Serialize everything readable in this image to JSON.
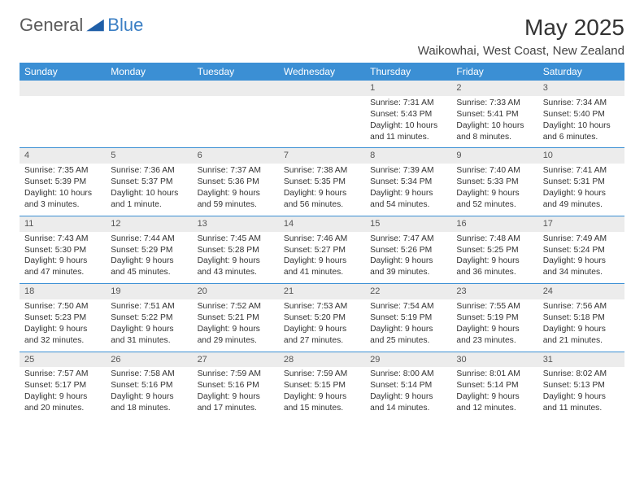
{
  "brand": {
    "text1": "General",
    "text2": "Blue",
    "icon_color": "#1f5fa8"
  },
  "title": "May 2025",
  "location": "Waikowhai, West Coast, New Zealand",
  "colors": {
    "header_bg": "#3b8fd4",
    "header_text": "#ffffff",
    "row_divider": "#3b8fd4",
    "daynum_bg": "#ececec",
    "text": "#333333"
  },
  "weekdays": [
    "Sunday",
    "Monday",
    "Tuesday",
    "Wednesday",
    "Thursday",
    "Friday",
    "Saturday"
  ],
  "weeks": [
    [
      null,
      null,
      null,
      null,
      {
        "n": "1",
        "sr": "7:31 AM",
        "ss": "5:43 PM",
        "dl": "10 hours and 11 minutes."
      },
      {
        "n": "2",
        "sr": "7:33 AM",
        "ss": "5:41 PM",
        "dl": "10 hours and 8 minutes."
      },
      {
        "n": "3",
        "sr": "7:34 AM",
        "ss": "5:40 PM",
        "dl": "10 hours and 6 minutes."
      }
    ],
    [
      {
        "n": "4",
        "sr": "7:35 AM",
        "ss": "5:39 PM",
        "dl": "10 hours and 3 minutes."
      },
      {
        "n": "5",
        "sr": "7:36 AM",
        "ss": "5:37 PM",
        "dl": "10 hours and 1 minute."
      },
      {
        "n": "6",
        "sr": "7:37 AM",
        "ss": "5:36 PM",
        "dl": "9 hours and 59 minutes."
      },
      {
        "n": "7",
        "sr": "7:38 AM",
        "ss": "5:35 PM",
        "dl": "9 hours and 56 minutes."
      },
      {
        "n": "8",
        "sr": "7:39 AM",
        "ss": "5:34 PM",
        "dl": "9 hours and 54 minutes."
      },
      {
        "n": "9",
        "sr": "7:40 AM",
        "ss": "5:33 PM",
        "dl": "9 hours and 52 minutes."
      },
      {
        "n": "10",
        "sr": "7:41 AM",
        "ss": "5:31 PM",
        "dl": "9 hours and 49 minutes."
      }
    ],
    [
      {
        "n": "11",
        "sr": "7:43 AM",
        "ss": "5:30 PM",
        "dl": "9 hours and 47 minutes."
      },
      {
        "n": "12",
        "sr": "7:44 AM",
        "ss": "5:29 PM",
        "dl": "9 hours and 45 minutes."
      },
      {
        "n": "13",
        "sr": "7:45 AM",
        "ss": "5:28 PM",
        "dl": "9 hours and 43 minutes."
      },
      {
        "n": "14",
        "sr": "7:46 AM",
        "ss": "5:27 PM",
        "dl": "9 hours and 41 minutes."
      },
      {
        "n": "15",
        "sr": "7:47 AM",
        "ss": "5:26 PM",
        "dl": "9 hours and 39 minutes."
      },
      {
        "n": "16",
        "sr": "7:48 AM",
        "ss": "5:25 PM",
        "dl": "9 hours and 36 minutes."
      },
      {
        "n": "17",
        "sr": "7:49 AM",
        "ss": "5:24 PM",
        "dl": "9 hours and 34 minutes."
      }
    ],
    [
      {
        "n": "18",
        "sr": "7:50 AM",
        "ss": "5:23 PM",
        "dl": "9 hours and 32 minutes."
      },
      {
        "n": "19",
        "sr": "7:51 AM",
        "ss": "5:22 PM",
        "dl": "9 hours and 31 minutes."
      },
      {
        "n": "20",
        "sr": "7:52 AM",
        "ss": "5:21 PM",
        "dl": "9 hours and 29 minutes."
      },
      {
        "n": "21",
        "sr": "7:53 AM",
        "ss": "5:20 PM",
        "dl": "9 hours and 27 minutes."
      },
      {
        "n": "22",
        "sr": "7:54 AM",
        "ss": "5:19 PM",
        "dl": "9 hours and 25 minutes."
      },
      {
        "n": "23",
        "sr": "7:55 AM",
        "ss": "5:19 PM",
        "dl": "9 hours and 23 minutes."
      },
      {
        "n": "24",
        "sr": "7:56 AM",
        "ss": "5:18 PM",
        "dl": "9 hours and 21 minutes."
      }
    ],
    [
      {
        "n": "25",
        "sr": "7:57 AM",
        "ss": "5:17 PM",
        "dl": "9 hours and 20 minutes."
      },
      {
        "n": "26",
        "sr": "7:58 AM",
        "ss": "5:16 PM",
        "dl": "9 hours and 18 minutes."
      },
      {
        "n": "27",
        "sr": "7:59 AM",
        "ss": "5:16 PM",
        "dl": "9 hours and 17 minutes."
      },
      {
        "n": "28",
        "sr": "7:59 AM",
        "ss": "5:15 PM",
        "dl": "9 hours and 15 minutes."
      },
      {
        "n": "29",
        "sr": "8:00 AM",
        "ss": "5:14 PM",
        "dl": "9 hours and 14 minutes."
      },
      {
        "n": "30",
        "sr": "8:01 AM",
        "ss": "5:14 PM",
        "dl": "9 hours and 12 minutes."
      },
      {
        "n": "31",
        "sr": "8:02 AM",
        "ss": "5:13 PM",
        "dl": "9 hours and 11 minutes."
      }
    ]
  ],
  "labels": {
    "sunrise": "Sunrise:",
    "sunset": "Sunset:",
    "daylight": "Daylight:"
  }
}
